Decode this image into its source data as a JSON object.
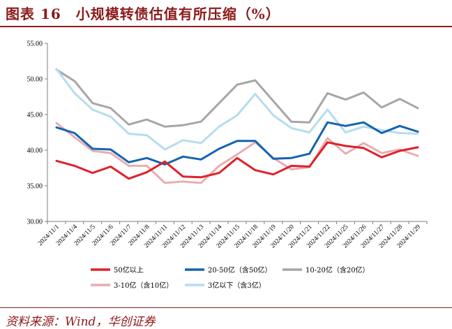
{
  "figure": {
    "title": "图表 16　小规模转债估值有所压缩（%）",
    "source": "资料来源：Wind，华创证券"
  },
  "chart_data": {
    "type": "line",
    "categories": [
      "2024/11/1",
      "2024/11/4",
      "2024/11/5",
      "2024/11/6",
      "2024/11/7",
      "2024/11/8",
      "2024/11/11",
      "2024/11/12",
      "2024/11/13",
      "2024/11/14",
      "2024/11/15",
      "2024/11/18",
      "2024/11/19",
      "2024/11/20",
      "2024/11/21",
      "2024/11/22",
      "2024/11/25",
      "2024/11/26",
      "2024/11/27",
      "2024/11/28",
      "2024/11/29"
    ],
    "y_ticks": [
      "30.00",
      "35.00",
      "40.00",
      "45.00",
      "50.00",
      "55.00"
    ],
    "ylim": [
      30,
      55
    ],
    "grid": false,
    "legend_position": "bottom",
    "series": [
      {
        "name": "50亿以上",
        "color": "#E0202A",
        "values": [
          38.5,
          37.8,
          36.8,
          37.7,
          36.0,
          36.9,
          38.4,
          36.3,
          36.2,
          36.8,
          38.9,
          37.2,
          36.6,
          37.8,
          37.7,
          41.1,
          40.6,
          40.3,
          39.0,
          39.9,
          40.4
        ]
      },
      {
        "name": "20-50亿（含50亿）",
        "color": "#1463B0",
        "values": [
          43.2,
          42.4,
          40.2,
          40.1,
          38.3,
          38.9,
          38.0,
          39.1,
          38.7,
          40.2,
          41.3,
          41.3,
          38.8,
          38.9,
          39.5,
          43.9,
          43.4,
          43.9,
          42.4,
          43.4,
          42.6
        ]
      },
      {
        "name": "10-20亿（含20亿）",
        "color": "#A6A6A6",
        "values": [
          51.3,
          49.7,
          46.6,
          45.9,
          43.6,
          44.3,
          43.3,
          43.5,
          44.0,
          46.6,
          49.2,
          49.8,
          46.9,
          44.0,
          43.9,
          48.0,
          47.1,
          48.1,
          46.0,
          47.2,
          45.9
        ]
      },
      {
        "name": "3-10亿（含10亿）",
        "color": "#E8AEB0",
        "values": [
          43.8,
          41.8,
          39.9,
          39.6,
          37.8,
          37.8,
          35.4,
          35.6,
          35.4,
          37.8,
          39.4,
          41.1,
          38.9,
          37.3,
          37.6,
          41.7,
          39.5,
          41.0,
          39.6,
          40.1,
          39.2
        ]
      },
      {
        "name": "3亿以下（含3亿）",
        "color": "#B5DDEE",
        "values": [
          51.4,
          48.0,
          45.7,
          44.7,
          42.3,
          42.1,
          40.1,
          41.4,
          41.0,
          43.3,
          44.9,
          47.9,
          44.9,
          43.1,
          42.5,
          45.7,
          42.5,
          43.3,
          42.8,
          42.4,
          42.3
        ]
      }
    ]
  }
}
